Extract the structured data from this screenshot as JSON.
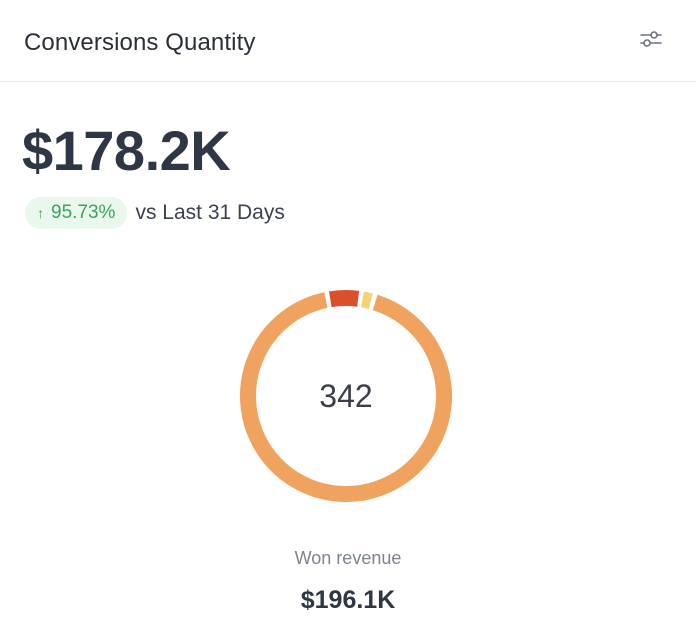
{
  "card": {
    "title": "Conversions Quantity",
    "filter_icon": "sliders-icon"
  },
  "summary": {
    "value": "$178.2K",
    "delta": "95.73%",
    "delta_icon": "arrow-up-icon",
    "delta_direction": "up",
    "compare_text": "vs Last 31 Days"
  },
  "donut": {
    "center_value": "342"
  },
  "footer": {
    "label": "Won revenue",
    "value": "$196.1K"
  },
  "colors": {
    "positive": "#3aa55a",
    "positive_bg": "#e9f7ec",
    "text_primary": "#2f3645",
    "text_muted": "#7d838f"
  },
  "chart_data": {
    "type": "pie",
    "series": [
      {
        "values": [
          88,
          5,
          2
        ]
      }
    ],
    "colors": [
      "#f0a35e",
      "#d9502a",
      "#f3d47a"
    ]
  }
}
